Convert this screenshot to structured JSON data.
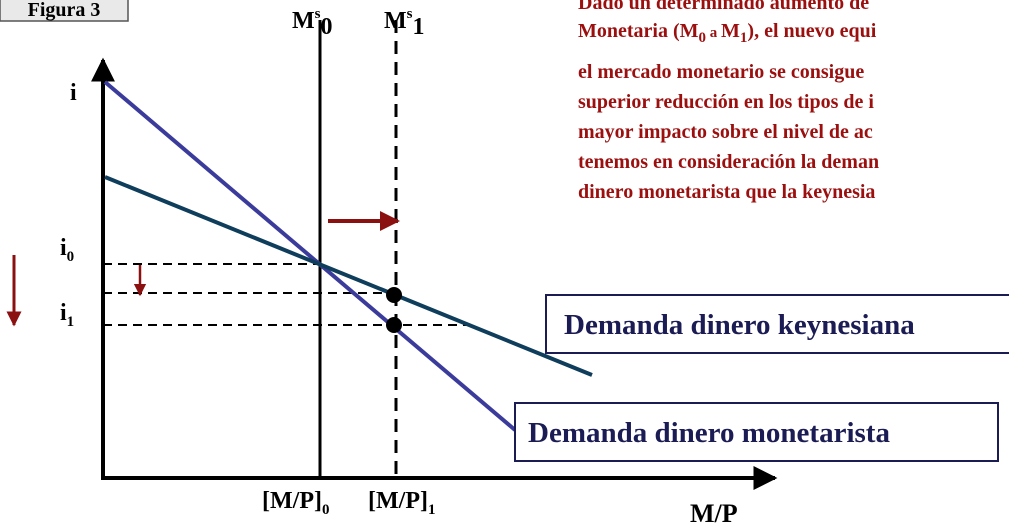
{
  "figure_label": "Figura 3",
  "axes": {
    "y_label": "i",
    "x_label": "M/P"
  },
  "supply": [
    {
      "base": "M",
      "sup": "s",
      "sub": "0"
    },
    {
      "base": "M",
      "sup": "s",
      "sub": "1"
    }
  ],
  "rates": [
    {
      "base": "i",
      "sub": "0"
    },
    {
      "base": "i",
      "sub": "1"
    }
  ],
  "quantities": [
    {
      "base": "[M/P]",
      "sub": "0"
    },
    {
      "base": "[M/P]",
      "sub": "1"
    }
  ],
  "curves": {
    "keynesian": "Demanda dinero keynesiana",
    "monetarist": "Demanda dinero monetarista"
  },
  "text": {
    "lines": [
      [
        "Dado un determinado aumento de"
      ],
      [
        "Monetaria (M",
        "0",
        " a ",
        "M",
        "1",
        "), el nuevo equi"
      ],
      [
        "el mercado monetario se consigue"
      ],
      [
        "superior reducción en los tipos de i"
      ],
      [
        "mayor impacto sobre el nivel de ac"
      ],
      [
        "tenemos en consideración la deman"
      ],
      [
        "dinero monetarista que la keynesia"
      ]
    ]
  }
}
